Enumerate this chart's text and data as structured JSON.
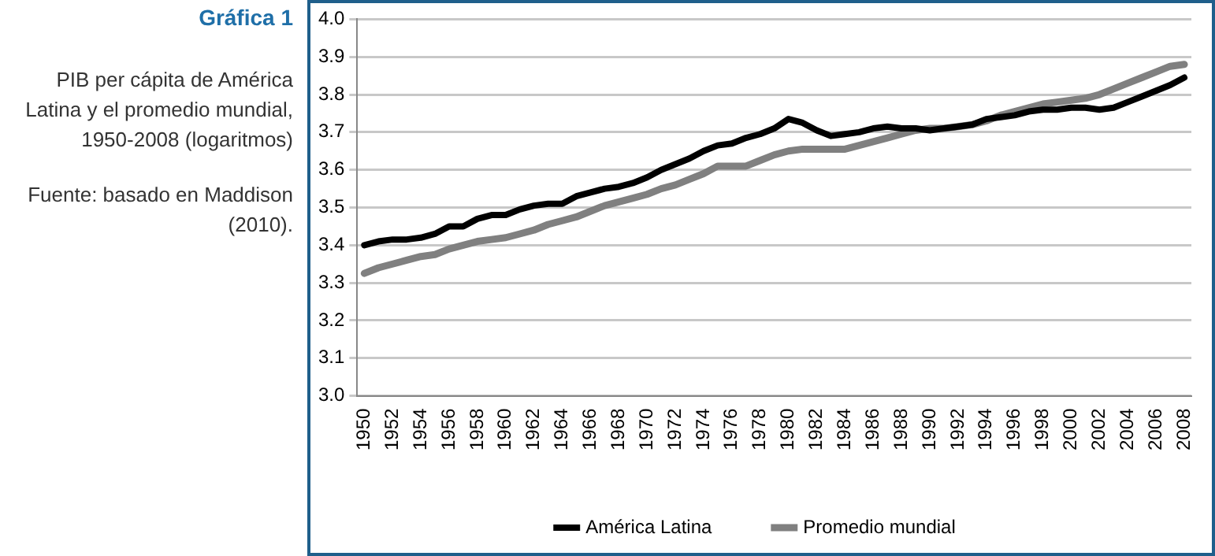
{
  "chart_data": {
    "type": "line",
    "title": "Gráfica 1",
    "subtitle": "PIB per cápita de América Latina y el promedio mundial, 1950-2008 (logaritmos)",
    "annotations": [
      "Fuente: basado en Maddison (2010)."
    ],
    "categories": [
      "1950",
      null,
      "1952",
      null,
      "1954",
      null,
      "1956",
      null,
      "1958",
      null,
      "1960",
      null,
      "1962",
      null,
      "1964",
      null,
      "1966",
      null,
      "1968",
      null,
      "1970",
      null,
      "1972",
      null,
      "1974",
      null,
      "1976",
      null,
      "1978",
      null,
      "1980",
      null,
      "1982",
      null,
      "1984",
      null,
      "1986",
      null,
      "1988",
      null,
      "1990",
      null,
      "1992",
      null,
      "1994",
      null,
      "1996",
      null,
      "1998",
      null,
      "2000",
      null,
      "2002",
      null,
      "2004",
      null,
      "2006",
      null,
      "2008"
    ],
    "series": [
      {
        "name": "América Latina",
        "color": "#000000",
        "values": [
          3.4,
          3.41,
          3.415,
          3.415,
          3.42,
          3.43,
          3.45,
          3.45,
          3.47,
          3.48,
          3.48,
          3.495,
          3.505,
          3.51,
          3.51,
          3.53,
          3.54,
          3.55,
          3.555,
          3.565,
          3.58,
          3.6,
          3.615,
          3.63,
          3.65,
          3.665,
          3.67,
          3.685,
          3.695,
          3.71,
          3.735,
          3.725,
          3.705,
          3.69,
          3.695,
          3.7,
          3.71,
          3.715,
          3.71,
          3.71,
          3.705,
          3.71,
          3.715,
          3.72,
          3.735,
          3.74,
          3.745,
          3.755,
          3.76,
          3.76,
          3.765,
          3.765,
          3.76,
          3.765,
          3.78,
          3.795,
          3.81,
          3.825,
          3.845
        ]
      },
      {
        "name": "Promedio mundial",
        "color": "#808080",
        "values": [
          3.325,
          3.34,
          3.35,
          3.36,
          3.37,
          3.375,
          3.39,
          3.4,
          3.41,
          3.415,
          3.42,
          3.43,
          3.44,
          3.455,
          3.465,
          3.475,
          3.49,
          3.505,
          3.515,
          3.525,
          3.535,
          3.55,
          3.56,
          3.575,
          3.59,
          3.61,
          3.61,
          3.61,
          3.625,
          3.64,
          3.65,
          3.655,
          3.655,
          3.655,
          3.655,
          3.665,
          3.675,
          3.685,
          3.695,
          3.705,
          3.71,
          3.71,
          3.715,
          3.72,
          3.73,
          3.745,
          3.755,
          3.765,
          3.775,
          3.78,
          3.785,
          3.79,
          3.8,
          3.815,
          3.83,
          3.845,
          3.86,
          3.875,
          3.88
        ]
      }
    ],
    "ylim": [
      3.0,
      4.0
    ],
    "yticks": [
      {
        "value": 3.0,
        "label": "3.0"
      },
      {
        "value": 3.1,
        "label": "3.1"
      },
      {
        "value": 3.2,
        "label": "3.2"
      },
      {
        "value": 3.3,
        "label": "3.3"
      },
      {
        "value": 3.4,
        "label": "3.4"
      },
      {
        "value": 3.5,
        "label": "3.5"
      },
      {
        "value": 3.6,
        "label": "3.6"
      },
      {
        "value": 3.7,
        "label": "3.7"
      },
      {
        "value": 3.8,
        "label": "3.8"
      },
      {
        "value": 3.9,
        "label": "3.9"
      },
      {
        "value": 4.0,
        "label": "4.0"
      }
    ],
    "grid": "y",
    "legend": "bottom",
    "marker": "none",
    "line_style": "solid"
  }
}
